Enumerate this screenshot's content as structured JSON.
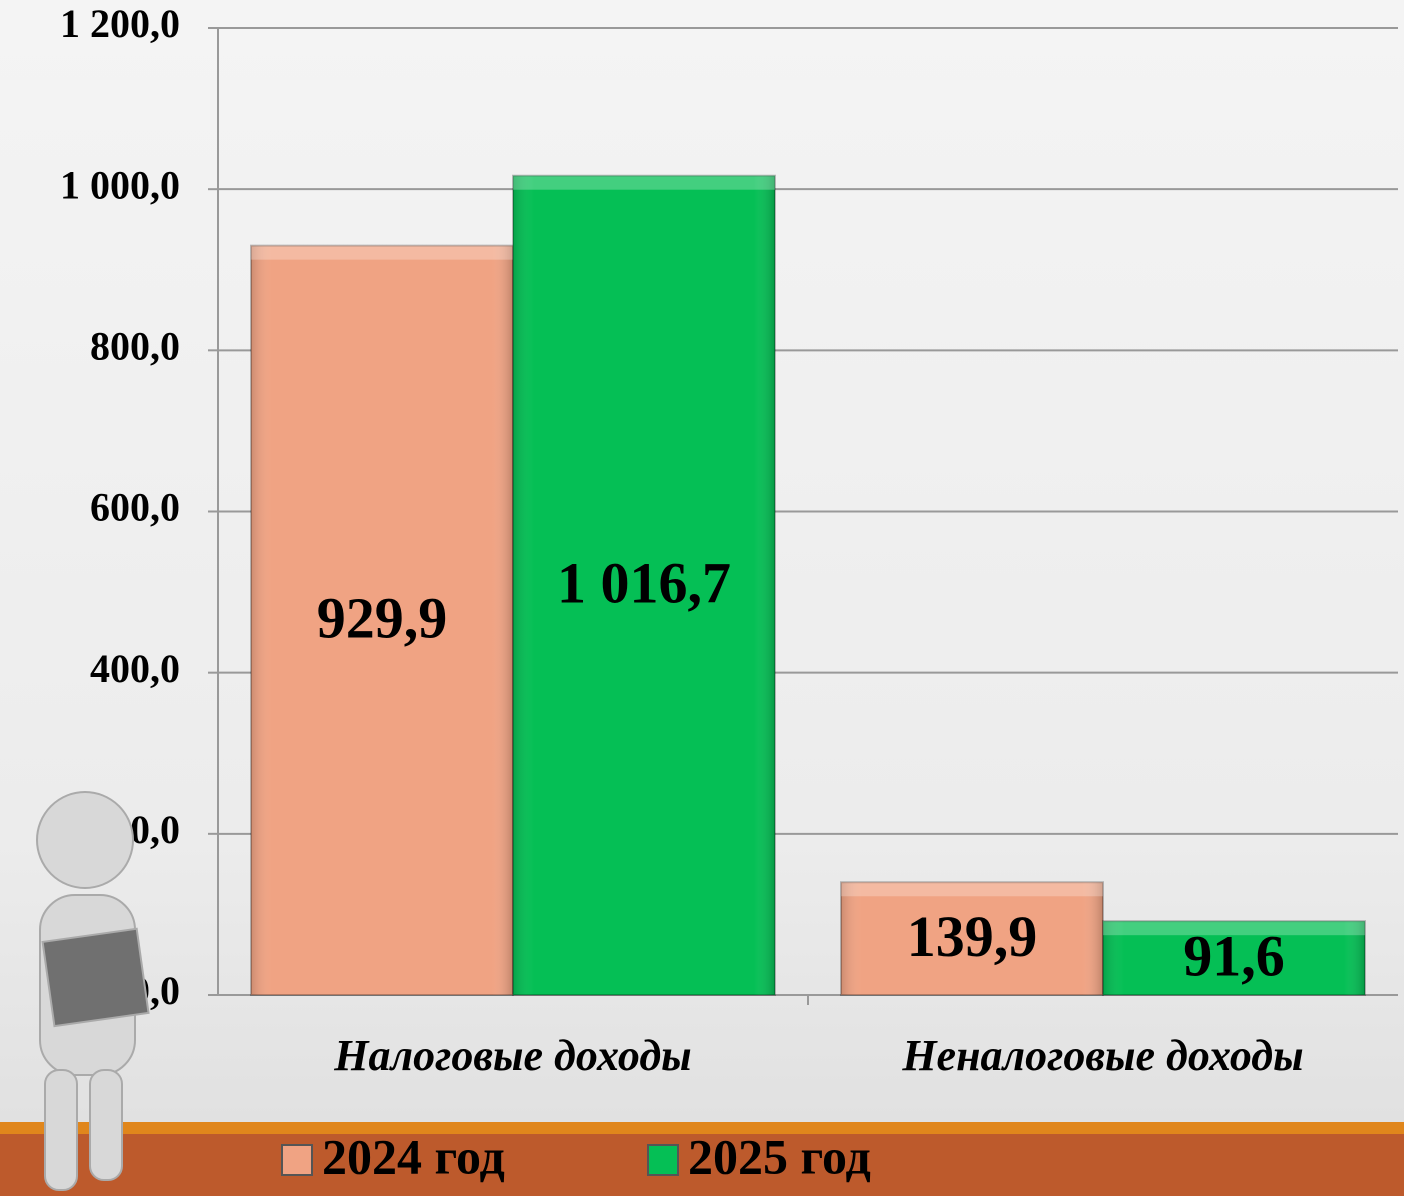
{
  "chart_data": {
    "type": "bar",
    "categories": [
      "Налоговые доходы",
      "Неналоговые доходы"
    ],
    "series": [
      {
        "name": "2024 год",
        "color": "#f0a383",
        "values": [
          929.9,
          139.9
        ],
        "value_labels": [
          "929,9",
          "139,9"
        ]
      },
      {
        "name": "2025 год",
        "color": "#05bf55",
        "values": [
          1016.7,
          91.6
        ],
        "value_labels": [
          "1 016,7",
          "91,6"
        ]
      }
    ],
    "ylim": [
      0,
      1200
    ],
    "yticks": [
      {
        "value": 0,
        "label": "0,0"
      },
      {
        "value": 200,
        "label": "200,0"
      },
      {
        "value": 400,
        "label": "400,0"
      },
      {
        "value": 600,
        "label": "600,0"
      },
      {
        "value": 800,
        "label": "800,0"
      },
      {
        "value": 1000,
        "label": "1 000,0"
      },
      {
        "value": 1200,
        "label": "1 200,0"
      }
    ],
    "grid": true,
    "legend": "bottom"
  }
}
